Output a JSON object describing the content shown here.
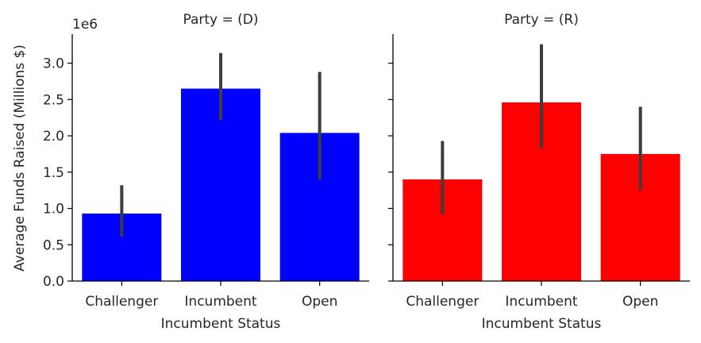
{
  "chart_data": {
    "type": "bar",
    "ylabel": "Average Funds Raised (Millions $)",
    "xlabel": "Incumbent Status",
    "offset_label": "1e6",
    "ylim": [
      0,
      3400000
    ],
    "yticks": [
      0,
      500000,
      1000000,
      1500000,
      2000000,
      2500000,
      3000000
    ],
    "ytick_labels": [
      "0.0",
      "0.5",
      "1.0",
      "1.5",
      "2.0",
      "2.5",
      "3.0"
    ],
    "categories": [
      "Challenger",
      "Incumbent",
      "Open"
    ],
    "grid": false,
    "panels": [
      {
        "title": "Party = (D)",
        "color": "#0000ff",
        "values": [
          930000,
          2650000,
          2040000
        ],
        "ci_low": [
          610000,
          2220000,
          1400000
        ],
        "ci_high": [
          1320000,
          3140000,
          2880000
        ]
      },
      {
        "title": "Party = (R)",
        "color": "#ff0000",
        "values": [
          1400000,
          2460000,
          1750000
        ],
        "ci_low": [
          920000,
          1830000,
          1250000
        ],
        "ci_high": [
          1930000,
          3260000,
          2400000
        ]
      }
    ],
    "errorbar_color": "#3d3d3d"
  }
}
